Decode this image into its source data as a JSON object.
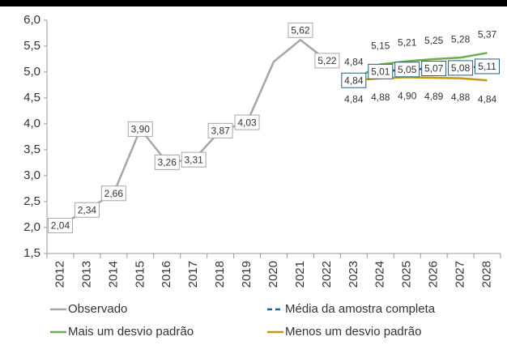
{
  "chart_data": {
    "type": "line",
    "categories": [
      "2012",
      "2013",
      "2014",
      "2015",
      "2016",
      "2017",
      "2018",
      "2019",
      "2020",
      "2021",
      "2022",
      "2023",
      "2024",
      "2025",
      "2026",
      "2027",
      "2028"
    ],
    "series": [
      {
        "name": "Observado",
        "color": "#a6a6a6",
        "style": "solid",
        "label_style": "box",
        "values": [
          2.04,
          2.34,
          2.66,
          3.9,
          3.26,
          3.31,
          3.87,
          4.03,
          5.2,
          5.62,
          5.22,
          null,
          null,
          null,
          null,
          null,
          null
        ],
        "value_labels": [
          "2,04",
          "2,34",
          "2,66",
          "3,90",
          "3,26",
          "3,31",
          "3,87",
          "4,03",
          null,
          "5,62",
          "5,22",
          null,
          null,
          null,
          null,
          null,
          null
        ]
      },
      {
        "name": "Média da amostra completa",
        "color": "#1f5f7f",
        "style": "dashed",
        "label_style": "box",
        "values": [
          null,
          null,
          null,
          null,
          null,
          null,
          null,
          null,
          null,
          null,
          null,
          4.84,
          5.01,
          5.05,
          5.07,
          5.08,
          5.11
        ],
        "value_labels": [
          null,
          null,
          null,
          null,
          null,
          null,
          null,
          null,
          null,
          null,
          null,
          "4,84",
          "5,01",
          "5,05",
          "5,07",
          "5,08",
          "5,11"
        ]
      },
      {
        "name": "Mais um desvio padrão",
        "color": "#70ad47",
        "style": "solid",
        "label_style": "above",
        "values": [
          null,
          null,
          null,
          null,
          null,
          null,
          null,
          null,
          null,
          null,
          null,
          4.84,
          5.15,
          5.21,
          5.25,
          5.28,
          5.37
        ],
        "value_labels": [
          null,
          null,
          null,
          null,
          null,
          null,
          null,
          null,
          null,
          null,
          null,
          "4,84",
          "5,15",
          "5,21",
          "5,25",
          "5,28",
          "5,37"
        ]
      },
      {
        "name": "Menos um desvio padrão",
        "color": "#c9960c",
        "style": "solid",
        "label_style": "below",
        "values": [
          null,
          null,
          null,
          null,
          null,
          null,
          null,
          null,
          null,
          null,
          null,
          4.84,
          4.88,
          4.9,
          4.89,
          4.88,
          4.84
        ],
        "value_labels": [
          null,
          null,
          null,
          null,
          null,
          null,
          null,
          null,
          null,
          null,
          null,
          "4,84",
          "4,88",
          "4,90",
          "4,89",
          "4,88",
          "4,84"
        ]
      }
    ],
    "ylim": [
      1.5,
      6.0
    ],
    "yticks": [
      {
        "value": 1.5,
        "label": "1,5"
      },
      {
        "value": 2.0,
        "label": "2,0"
      },
      {
        "value": 2.5,
        "label": "2,5"
      },
      {
        "value": 3.0,
        "label": "3,0"
      },
      {
        "value": 3.5,
        "label": "3,5"
      },
      {
        "value": 4.0,
        "label": "4,0"
      },
      {
        "value": 4.5,
        "label": "4,5"
      },
      {
        "value": 5.0,
        "label": "5,0"
      },
      {
        "value": 5.5,
        "label": "5,5"
      },
      {
        "value": 6.0,
        "label": "6,0"
      }
    ],
    "grid": false,
    "legend": "bottom"
  }
}
